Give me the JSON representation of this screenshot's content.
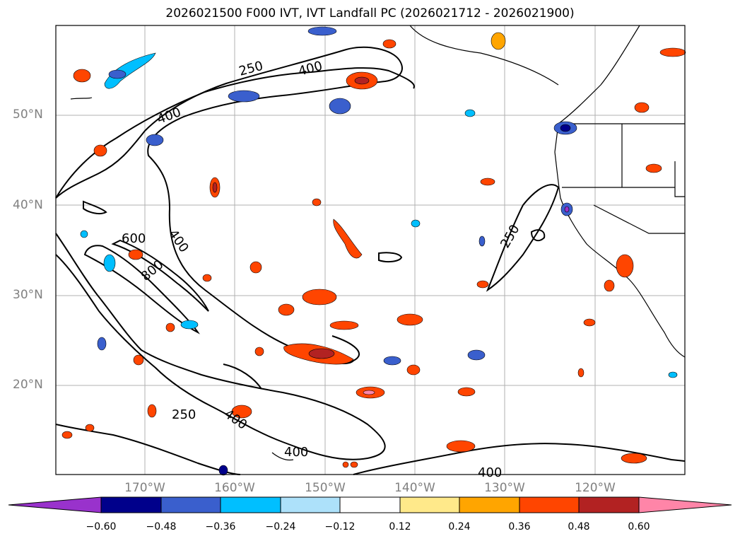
{
  "title": "2026021500 F000 IVT, IVT Landfall PC (2026021712 - 2026021900)",
  "lat_labels": [
    "50°N",
    "40°N",
    "30°N",
    "20°N"
  ],
  "lon_labels": [
    "170°W",
    "160°W",
    "150°W",
    "140°W",
    "130°W",
    "120°W"
  ],
  "contour_labels": [
    "250",
    "400",
    "400",
    "600",
    "400",
    "800",
    "250",
    "400",
    "400",
    "250",
    "400"
  ],
  "colorbar": {
    "ticks": [
      "−0.60",
      "−0.48",
      "−0.36",
      "−0.24",
      "−0.12",
      "0.12",
      "0.24",
      "0.36",
      "0.48",
      "0.60"
    ],
    "colors": [
      "#9932CC",
      "#00008B",
      "#3A5FCD",
      "#00BFFF",
      "#ADE1FA",
      "#FFFFFF",
      "#FFE98A",
      "#FFA500",
      "#FF4500",
      "#B22222",
      "#FF85A8"
    ]
  }
}
